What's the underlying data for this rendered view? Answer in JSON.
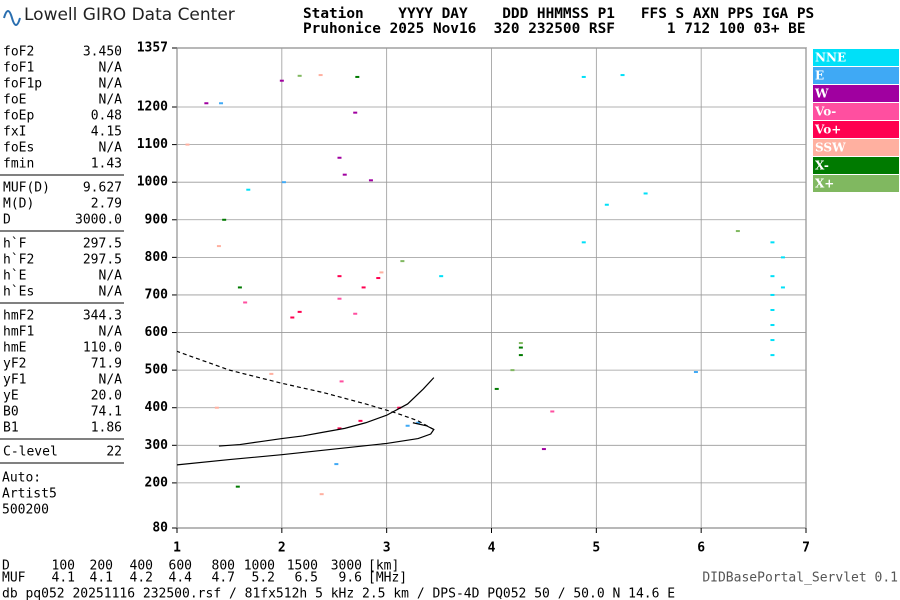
{
  "header": {
    "logo": "Lowell GIRO Data Center",
    "line1": "Station    YYYY DAY    DDD HHMMSS P1   FFS S AXN PPS IGA PS",
    "line2": "Pruhonice 2025 Nov16  320 232500 RSF      1 712 100 03+ BE"
  },
  "parameters": [
    [
      [
        "foF2",
        "3.450"
      ],
      [
        "foF1",
        "N/A"
      ],
      [
        "foF1p",
        "N/A"
      ],
      [
        "foE",
        "N/A"
      ],
      [
        "foEp",
        "0.48"
      ],
      [
        "fxI",
        "4.15"
      ],
      [
        "foEs",
        "N/A"
      ],
      [
        "fmin",
        "1.43"
      ]
    ],
    [
      [
        "MUF(D)",
        "9.627"
      ],
      [
        "M(D)",
        "2.79"
      ],
      [
        "D",
        "3000.0"
      ]
    ],
    [
      [
        "h`F",
        "297.5"
      ],
      [
        "h`F2",
        "297.5"
      ],
      [
        "h`E",
        "N/A"
      ],
      [
        "h`Es",
        "N/A"
      ]
    ],
    [
      [
        "hmF2",
        "344.3"
      ],
      [
        "hmF1",
        "N/A"
      ],
      [
        "hmE",
        "110.0"
      ],
      [
        "yF2",
        "71.9"
      ],
      [
        "yF1",
        "N/A"
      ],
      [
        "yE",
        "20.0"
      ],
      [
        "B0",
        "74.1"
      ],
      [
        "B1",
        "1.86"
      ]
    ],
    [
      [
        "C-level",
        "22"
      ]
    ]
  ],
  "auto": [
    "Auto:",
    "Artist5",
    "500200"
  ],
  "muf_table": {
    "d_label": "D",
    "d": [
      "100",
      "200",
      "400",
      "600",
      "800",
      "1000",
      "1500",
      "3000"
    ],
    "d_unit": "[km]",
    "muf_label": "MUF",
    "muf": [
      "4.1",
      "4.1",
      "4.2",
      "4.4",
      "4.7",
      "5.2",
      "6.5",
      "9.6"
    ],
    "muf_unit": "[MHz]"
  },
  "footer": "db pq052 20251116 232500.rsf / 81fx512h 5 kHz 2.5 km / DPS-4D PQ052 50 / 50.0 N 14.6 E",
  "servlet": "DIDBasePortal_Servlet 0.1",
  "chart_data": {
    "type": "scatter",
    "xlim": [
      1,
      7
    ],
    "xticks": [
      1,
      2,
      3,
      4,
      5,
      6,
      7
    ],
    "ylim": [
      80,
      1357
    ],
    "yticks": [
      80,
      200,
      300,
      400,
      500,
      600,
      700,
      800,
      900,
      1000,
      1100,
      1200,
      1357
    ],
    "grid": true,
    "series": [
      {
        "name": "NNE",
        "color": "#00e0f8",
        "x": [
          6.68,
          6.68,
          6.68,
          6.68,
          6.68,
          6.68,
          6.68,
          6.78,
          6.78,
          4.88,
          5.25,
          3.52,
          4.88,
          5.47,
          1.68,
          5.1
        ],
        "y": [
          540,
          580,
          620,
          660,
          700,
          750,
          840,
          800,
          720,
          1280,
          1285,
          750,
          840,
          970,
          980,
          940
        ]
      },
      {
        "name": "E",
        "color": "#3fa9f5",
        "x": [
          3.3,
          3.2,
          2.02,
          2.52,
          1.42,
          5.95
        ],
        "y": [
          360,
          352,
          1000,
          250,
          1210,
          495
        ]
      },
      {
        "name": "W",
        "color": "#a000a0",
        "x": [
          2.55,
          2.7,
          2.6,
          1.28,
          4.5,
          2.85,
          2.0
        ],
        "y": [
          1065,
          1185,
          1020,
          1210,
          290,
          1005,
          1270
        ]
      },
      {
        "name": "Vo-",
        "color": "#ff4fa0",
        "x": [
          2.55,
          2.7,
          1.65,
          2.57,
          4.58
        ],
        "y": [
          690,
          650,
          680,
          470,
          390
        ]
      },
      {
        "name": "Vo+",
        "color": "#ff0050",
        "x": [
          2.1,
          2.55,
          2.78,
          2.92,
          2.17,
          2.55,
          2.75,
          3.12
        ],
        "y": [
          640,
          750,
          720,
          745,
          655,
          345,
          365,
          400
        ]
      },
      {
        "name": "SSW",
        "color": "#ffb0a0",
        "x": [
          1.4,
          1.9,
          2.37,
          1.1,
          2.95,
          1.38,
          2.38
        ],
        "y": [
          830,
          490,
          1285,
          1100,
          760,
          400,
          170
        ]
      },
      {
        "name": "X-",
        "color": "#007a00",
        "x": [
          4.28,
          4.28,
          2.72,
          1.45,
          1.6,
          1.58,
          4.05
        ],
        "y": [
          540,
          560,
          1280,
          900,
          720,
          190,
          450
        ]
      },
      {
        "name": "X+",
        "color": "#80b860",
        "x": [
          4.28,
          2.17,
          3.15,
          6.35,
          4.2
        ],
        "y": [
          572,
          1283,
          790,
          870,
          500
        ]
      }
    ],
    "traces": [
      {
        "color": "#000000",
        "dashed": false,
        "x": [
          1.4,
          1.6,
          1.8,
          2.0,
          2.2,
          2.4,
          2.6,
          2.8,
          3.0,
          3.2,
          3.35,
          3.45
        ],
        "y": [
          298,
          302,
          310,
          318,
          325,
          335,
          345,
          360,
          380,
          410,
          450,
          480
        ]
      },
      {
        "color": "#000000",
        "dashed": false,
        "x": [
          1.0,
          1.5,
          2.0,
          2.5,
          3.0,
          3.3,
          3.42,
          3.45,
          3.38,
          3.25
        ],
        "y": [
          248,
          262,
          275,
          290,
          305,
          318,
          330,
          342,
          352,
          360
        ]
      },
      {
        "color": "#000000",
        "dashed": true,
        "x": [
          3.45,
          3.3,
          3.1,
          2.8,
          2.4,
          2.0,
          1.5,
          1.0
        ],
        "y": [
          342,
          365,
          385,
          410,
          440,
          465,
          500,
          550
        ]
      }
    ]
  }
}
